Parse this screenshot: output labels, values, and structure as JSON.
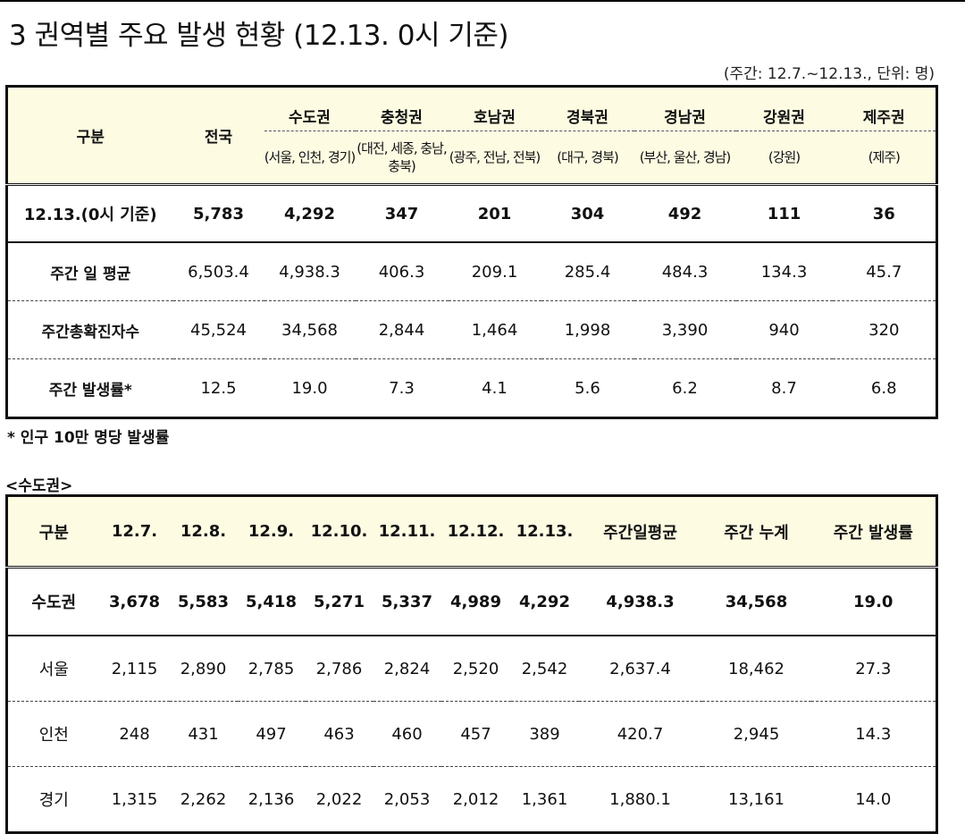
{
  "title": "3 권역별 주요 발생 현황 (12.13. 0시 기준)",
  "period_note": "(주간: 12.7.~12.13., 단위: 명)",
  "regional_table": {
    "header_label": "구분",
    "national_label": "전국",
    "regions": [
      {
        "name": "수도권",
        "detail": "(서울, 인천, 경기)"
      },
      {
        "name": "충청권",
        "detail": "(대전, 세종, 충남, 충북)"
      },
      {
        "name": "호남권",
        "detail": "(광주, 전남, 전북)"
      },
      {
        "name": "경북권",
        "detail": "(대구, 경북)"
      },
      {
        "name": "경남권",
        "detail": "(부산, 울산, 경남)"
      },
      {
        "name": "강원권",
        "detail": "(강원)"
      },
      {
        "name": "제주권",
        "detail": "(제주)"
      }
    ],
    "rows": [
      {
        "label": "12.13.(0시 기준)",
        "values": [
          "5,783",
          "4,292",
          "347",
          "201",
          "304",
          "492",
          "111",
          "36"
        ]
      },
      {
        "label": "주간 일 평균",
        "values": [
          "6,503.4",
          "4,938.3",
          "406.3",
          "209.1",
          "285.4",
          "484.3",
          "134.3",
          "45.7"
        ]
      },
      {
        "label": "주간총확진자수",
        "values": [
          "45,524",
          "34,568",
          "2,844",
          "1,464",
          "1,998",
          "3,390",
          "940",
          "320"
        ]
      },
      {
        "label": "주간 발생률*",
        "values": [
          "12.5",
          "19.0",
          "7.3",
          "4.1",
          "5.6",
          "6.2",
          "8.7",
          "6.8"
        ]
      }
    ]
  },
  "footnote": "* 인구 10만 명당 발생률",
  "section_label": "<수도권>",
  "capital_table": {
    "headers": [
      "구분",
      "12.7.",
      "12.8.",
      "12.9.",
      "12.10.",
      "12.11.",
      "12.12.",
      "12.13.",
      "주간일평균",
      "주간 누계",
      "주간 발생률"
    ],
    "rows": [
      {
        "label": "수도권",
        "values": [
          "3,678",
          "5,583",
          "5,418",
          "5,271",
          "5,337",
          "4,989",
          "4,292",
          "4,938.3",
          "34,568",
          "19.0"
        ]
      },
      {
        "label": "서울",
        "values": [
          "2,115",
          "2,890",
          "2,785",
          "2,786",
          "2,824",
          "2,520",
          "2,542",
          "2,637.4",
          "18,462",
          "27.3"
        ]
      },
      {
        "label": "인천",
        "values": [
          "248",
          "431",
          "497",
          "463",
          "460",
          "457",
          "389",
          "420.7",
          "2,945",
          "14.3"
        ]
      },
      {
        "label": "경기",
        "values": [
          "1,315",
          "2,262",
          "2,136",
          "2,022",
          "2,053",
          "2,012",
          "1,361",
          "1,880.1",
          "13,161",
          "14.0"
        ]
      }
    ]
  }
}
